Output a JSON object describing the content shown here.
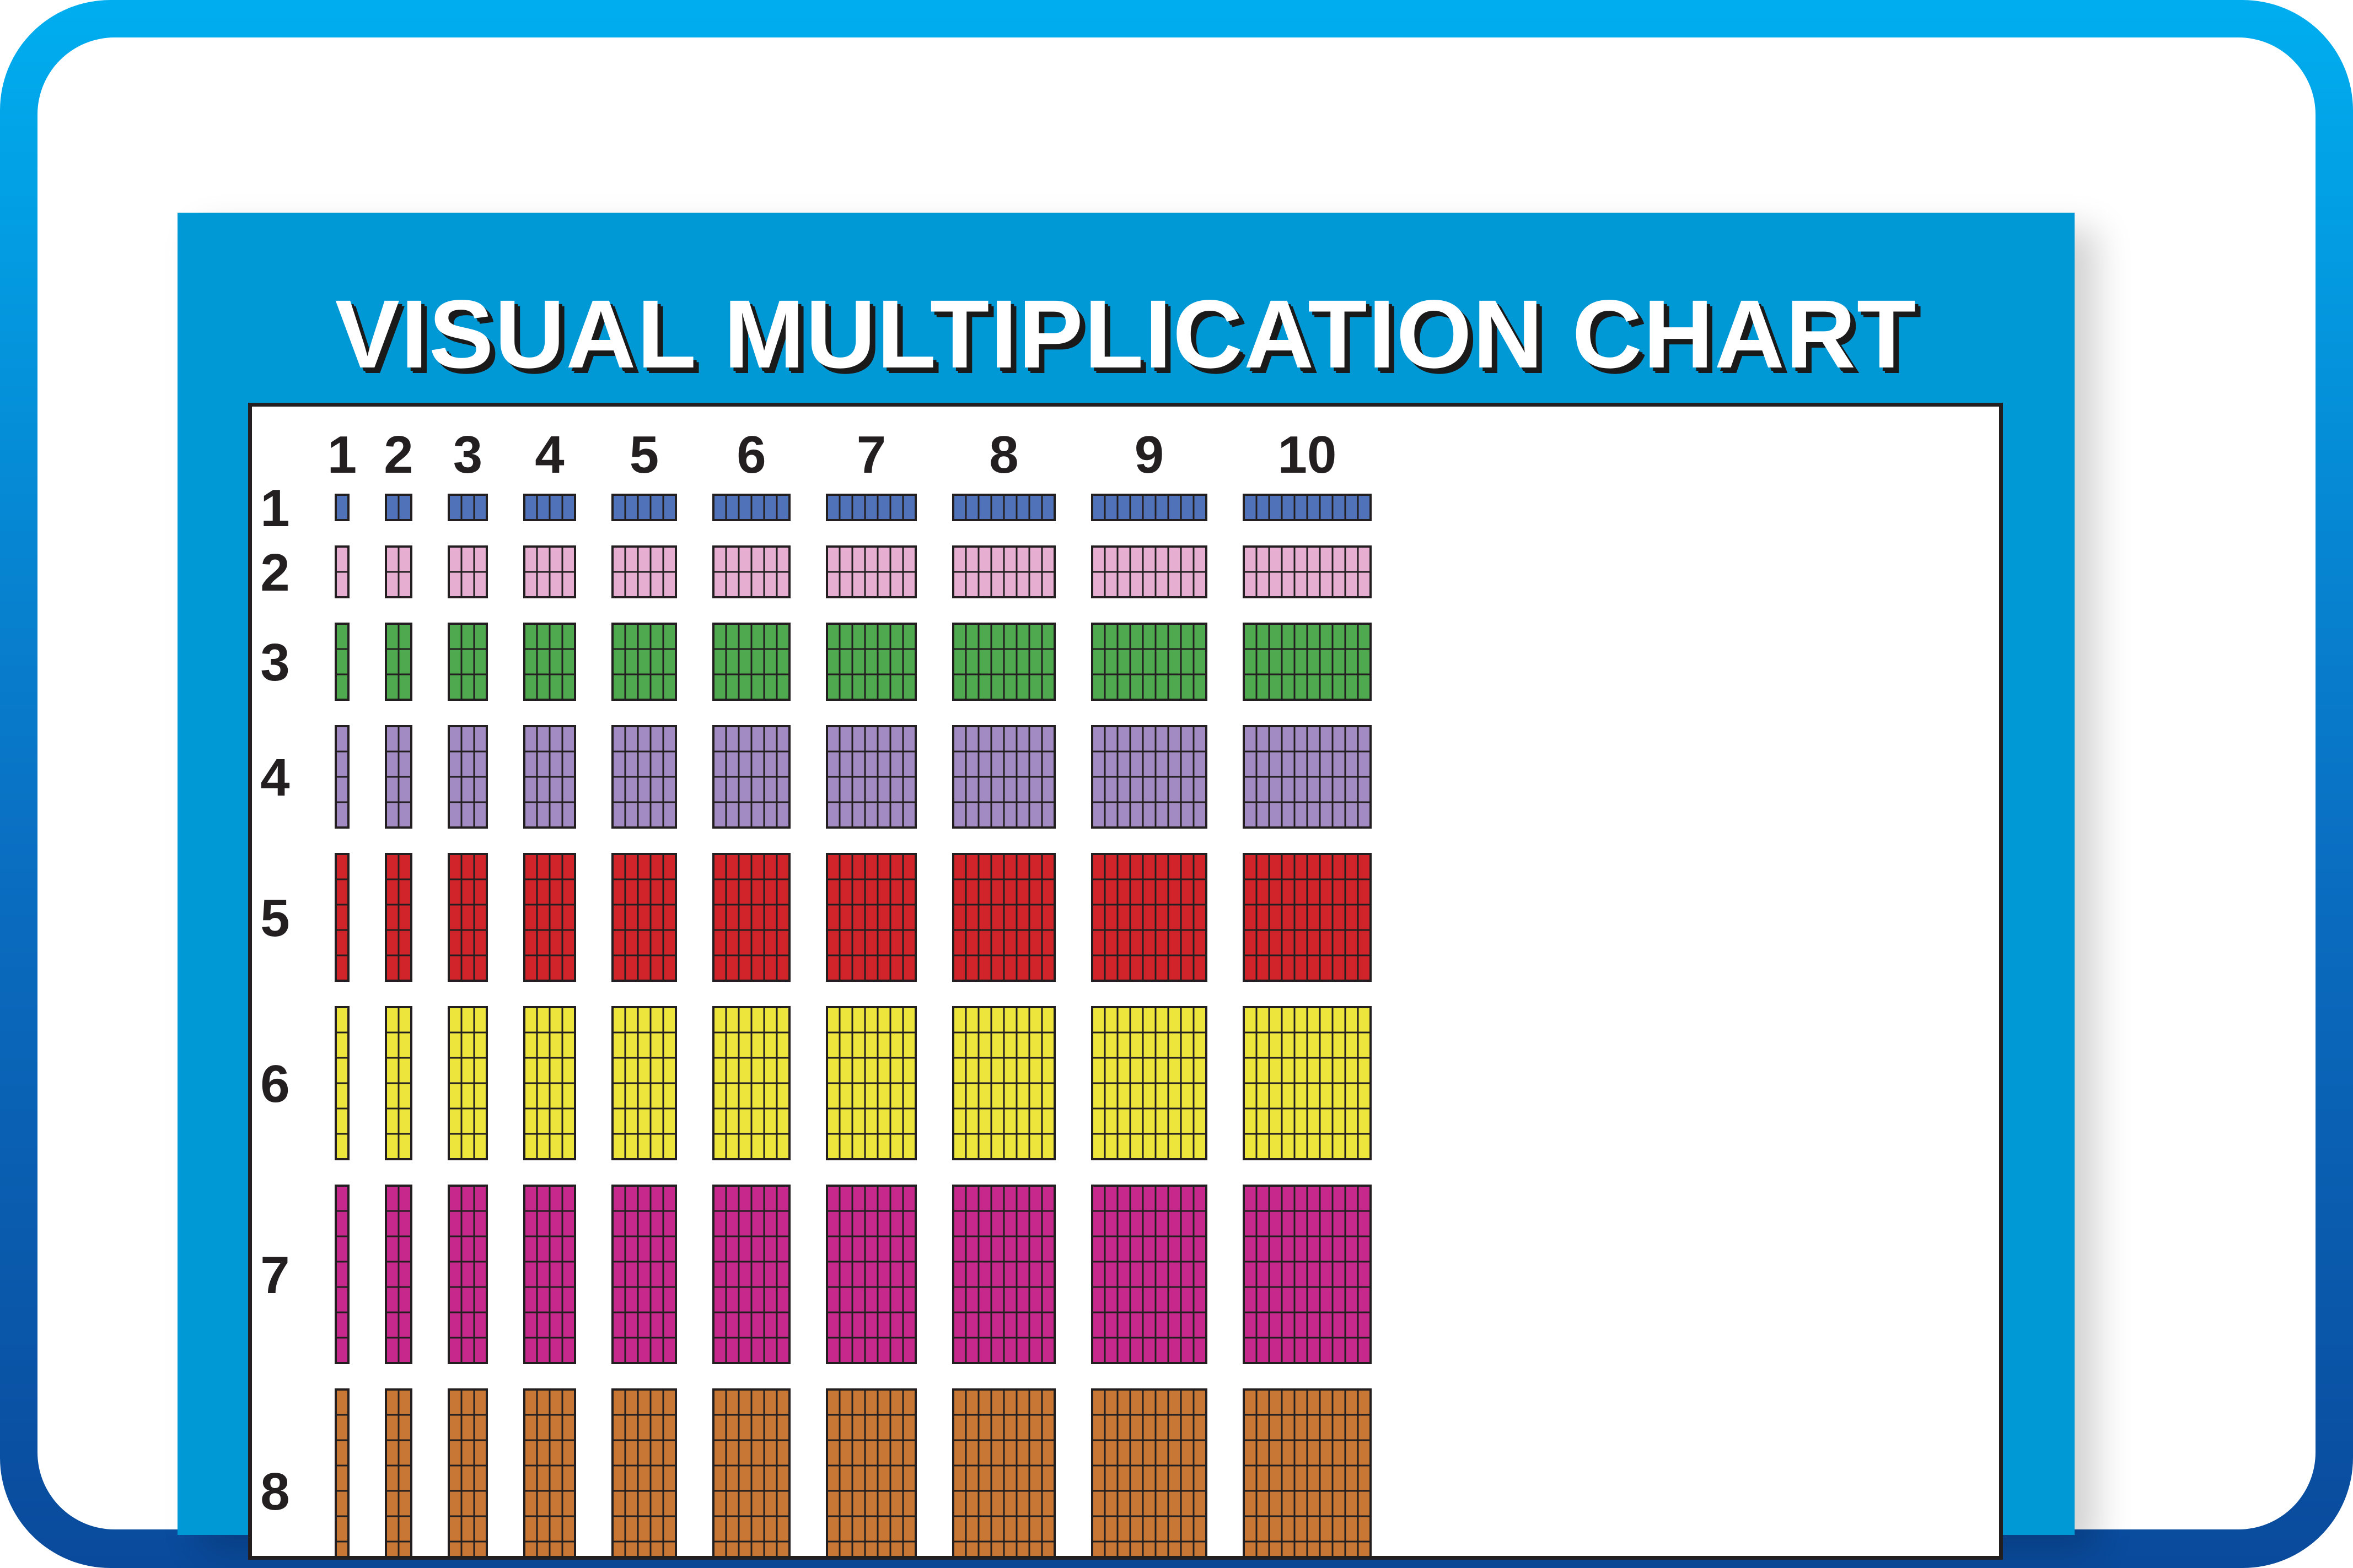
{
  "title": "VISUAL MULTIPLICATION CHART",
  "column_labels": [
    "1",
    "2",
    "3",
    "4",
    "5",
    "6",
    "7",
    "8",
    "9",
    "10"
  ],
  "row_labels": [
    "1",
    "2",
    "3",
    "4",
    "5",
    "6",
    "7",
    "8"
  ],
  "colors": {
    "frame_light": "#00aeef",
    "frame_dark": "#0a4a9c",
    "card_background": "#0099d6",
    "grid_line": "#231f20",
    "rows": [
      "#4f72b8",
      "#e6aed0",
      "#4ea94f",
      "#a18bc2",
      "#d1232a",
      "#ede43c",
      "#c7288b",
      "#c97734"
    ]
  },
  "chart_data": {
    "type": "table",
    "title": "VISUAL MULTIPLICATION CHART",
    "columns": [
      1,
      2,
      3,
      4,
      5,
      6,
      7,
      8,
      9,
      10
    ],
    "rows": [
      1,
      2,
      3,
      4,
      5,
      6,
      7,
      8
    ],
    "cell_rule": "each cell is a rows x columns block of unit squares"
  }
}
